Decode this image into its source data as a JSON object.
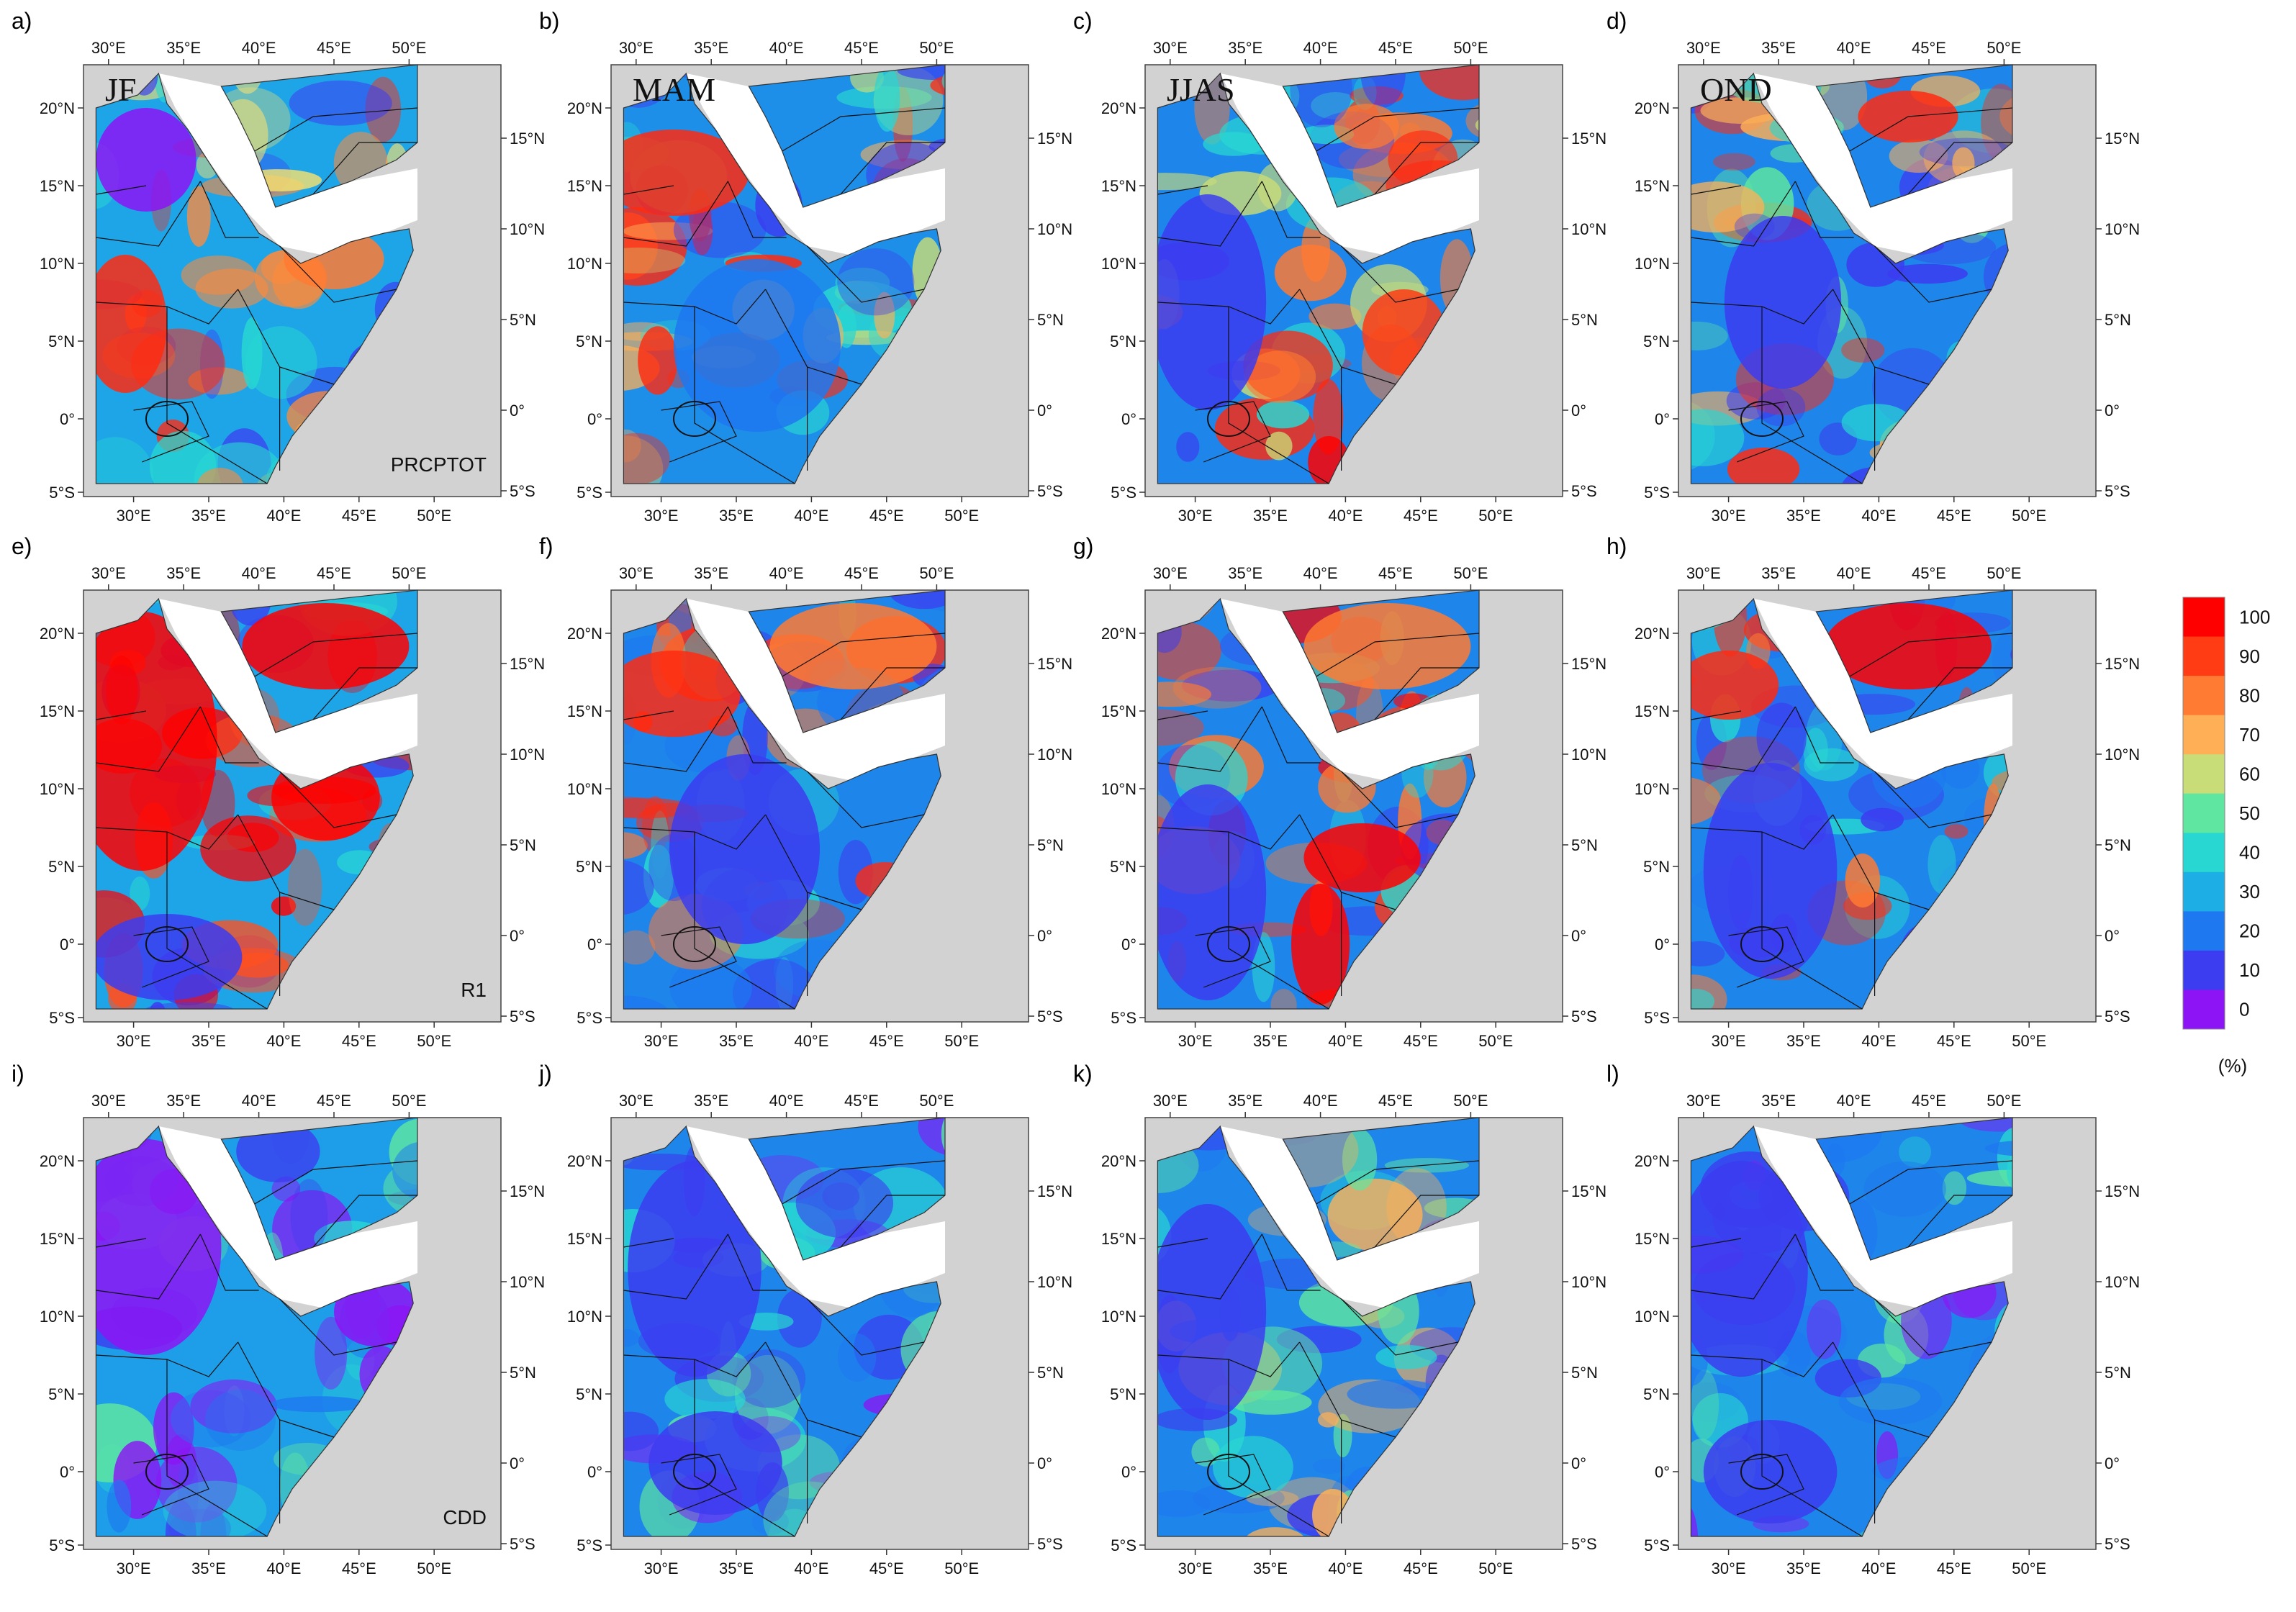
{
  "figure": {
    "panels": [
      {
        "id": "a",
        "label": "a)",
        "season": "JF",
        "index": "PRCPTOT",
        "seed": 11,
        "style": "a"
      },
      {
        "id": "b",
        "label": "b)",
        "season": "MAM",
        "index": "",
        "seed": 23,
        "style": "b"
      },
      {
        "id": "c",
        "label": "c)",
        "season": "JJAS",
        "index": "",
        "seed": 37,
        "style": "c"
      },
      {
        "id": "d",
        "label": "d)",
        "season": "OND",
        "index": "",
        "seed": 41,
        "style": "d"
      },
      {
        "id": "e",
        "label": "e)",
        "season": "",
        "index": "R1",
        "seed": 53,
        "style": "e"
      },
      {
        "id": "f",
        "label": "f)",
        "season": "",
        "index": "",
        "seed": 67,
        "style": "f"
      },
      {
        "id": "g",
        "label": "g)",
        "season": "",
        "index": "",
        "seed": 71,
        "style": "g"
      },
      {
        "id": "h",
        "label": "h)",
        "season": "",
        "index": "",
        "seed": 83,
        "style": "h"
      },
      {
        "id": "i",
        "label": "i)",
        "season": "",
        "index": "CDD",
        "seed": 97,
        "style": "i"
      },
      {
        "id": "j",
        "label": "j)",
        "season": "",
        "index": "",
        "seed": 101,
        "style": "j"
      },
      {
        "id": "k",
        "label": "k)",
        "season": "",
        "index": "",
        "seed": 113,
        "style": "k"
      },
      {
        "id": "l",
        "label": "l)",
        "season": "",
        "index": "",
        "seed": 127,
        "style": "l"
      }
    ],
    "lon_ticks": [
      "30°E",
      "35°E",
      "40°E",
      "45°E",
      "50°E"
    ],
    "lat_ticks_left": [
      "20°N",
      "15°N",
      "10°N",
      "5°N",
      "0°",
      "5°S"
    ],
    "lat_ticks_right": [
      "15°N",
      "10°N",
      "5°N",
      "0°",
      "5°S"
    ],
    "colorbar": {
      "labels": [
        "100",
        "90",
        "80",
        "70",
        "60",
        "50",
        "40",
        "30",
        "20",
        "10",
        "0"
      ],
      "colors": [
        "#ff0000",
        "#ff3c14",
        "#ff7a32",
        "#ffb056",
        "#c8dc78",
        "#5fe6a0",
        "#28d7d2",
        "#1eaee6",
        "#1e78f0",
        "#3c3cf0",
        "#8c14f5"
      ],
      "unit": "(%)"
    },
    "colors": {
      "ocean": "#ffffff",
      "outside": "#d2d2d2",
      "border": "#000000"
    }
  }
}
